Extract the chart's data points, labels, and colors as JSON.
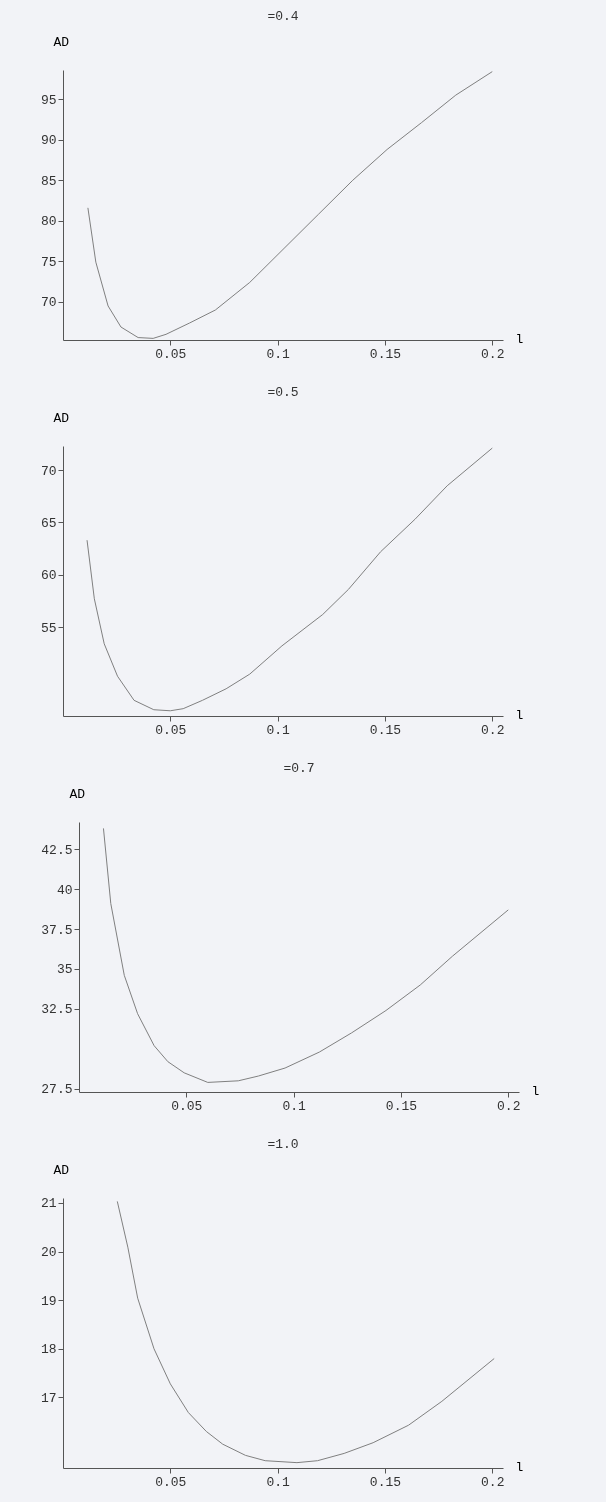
{
  "chart_data": [
    {
      "type": "line",
      "title": "=0.4",
      "xlabel": "l",
      "ylabel": "AD",
      "color": "#808080",
      "xlim": [
        0,
        0.205
      ],
      "xticks": [
        0.05,
        0.1,
        0.15,
        0.2
      ],
      "ylim": [
        65.3,
        98.6
      ],
      "yticks": [
        70,
        75,
        80,
        85,
        90,
        95
      ],
      "x": [
        0.0116,
        0.0153,
        0.021,
        0.027,
        0.035,
        0.042,
        0.048,
        0.059,
        0.071,
        0.087,
        0.103,
        0.119,
        0.135,
        0.151,
        0.167,
        0.183,
        0.2
      ],
      "values": [
        81.6,
        74.9,
        69.5,
        66.9,
        65.6,
        65.5,
        66.0,
        67.4,
        69.0,
        72.4,
        76.6,
        80.8,
        85.0,
        88.8,
        92.1,
        95.5,
        98.4
      ]
    },
    {
      "type": "line",
      "title": "=0.5",
      "xlabel": "l",
      "ylabel": "AD",
      "color": "#808080",
      "xlim": [
        0,
        0.205
      ],
      "xticks": [
        0.05,
        0.1,
        0.15,
        0.2
      ],
      "ylim": [
        46.5,
        72.3
      ],
      "yticks": [
        55,
        60,
        65,
        70
      ],
      "x": [
        0.0112,
        0.0146,
        0.0192,
        0.0254,
        0.0331,
        0.0423,
        0.05,
        0.056,
        0.065,
        0.076,
        0.087,
        0.102,
        0.121,
        0.133,
        0.148,
        0.164,
        0.179,
        0.2
      ],
      "values": [
        63.3,
        57.7,
        53.4,
        50.3,
        48.0,
        47.1,
        47.0,
        47.2,
        48.0,
        49.1,
        50.5,
        53.2,
        56.2,
        58.6,
        62.2,
        65.3,
        68.5,
        72.1
      ]
    },
    {
      "type": "line",
      "title": "=0.7",
      "xlabel": "l",
      "ylabel": "AD",
      "color": "#808080",
      "xlim": [
        0,
        0.205
      ],
      "xticks": [
        0.05,
        0.1,
        0.15,
        0.2
      ],
      "ylim": [
        27.3,
        44.2
      ],
      "yticks": [
        27.5,
        32.5,
        35,
        37.5,
        40,
        42.5
      ],
      "x": [
        0.0114,
        0.0148,
        0.0211,
        0.0273,
        0.035,
        0.0414,
        0.049,
        0.06,
        0.0742,
        0.0836,
        0.096,
        0.112,
        0.127,
        0.143,
        0.159,
        0.174,
        0.2
      ],
      "values": [
        43.8,
        39.1,
        34.6,
        32.2,
        30.2,
        29.2,
        28.5,
        27.9,
        28.0,
        28.3,
        28.8,
        29.8,
        31.0,
        32.4,
        34.0,
        35.8,
        38.7
      ]
    },
    {
      "type": "line",
      "title": "=1.0",
      "xlabel": "l",
      "ylabel": "AD",
      "color": "#808080",
      "xlim": [
        0,
        0.205
      ],
      "xticks": [
        0.05,
        0.1,
        0.15,
        0.2
      ],
      "ylim": [
        15.55,
        21.1
      ],
      "yticks": [
        17,
        18,
        19,
        20,
        21
      ],
      "x": [
        0.0253,
        0.0302,
        0.0348,
        0.0424,
        0.05,
        0.0584,
        0.0668,
        0.0744,
        0.085,
        0.0942,
        0.109,
        0.1186,
        0.131,
        0.1445,
        0.161,
        0.1765,
        0.2009
      ],
      "values": [
        21.03,
        20.09,
        19.04,
        18.0,
        17.28,
        16.69,
        16.3,
        16.04,
        15.81,
        15.7,
        15.66,
        15.7,
        15.85,
        16.07,
        16.43,
        16.92,
        17.8
      ]
    }
  ]
}
